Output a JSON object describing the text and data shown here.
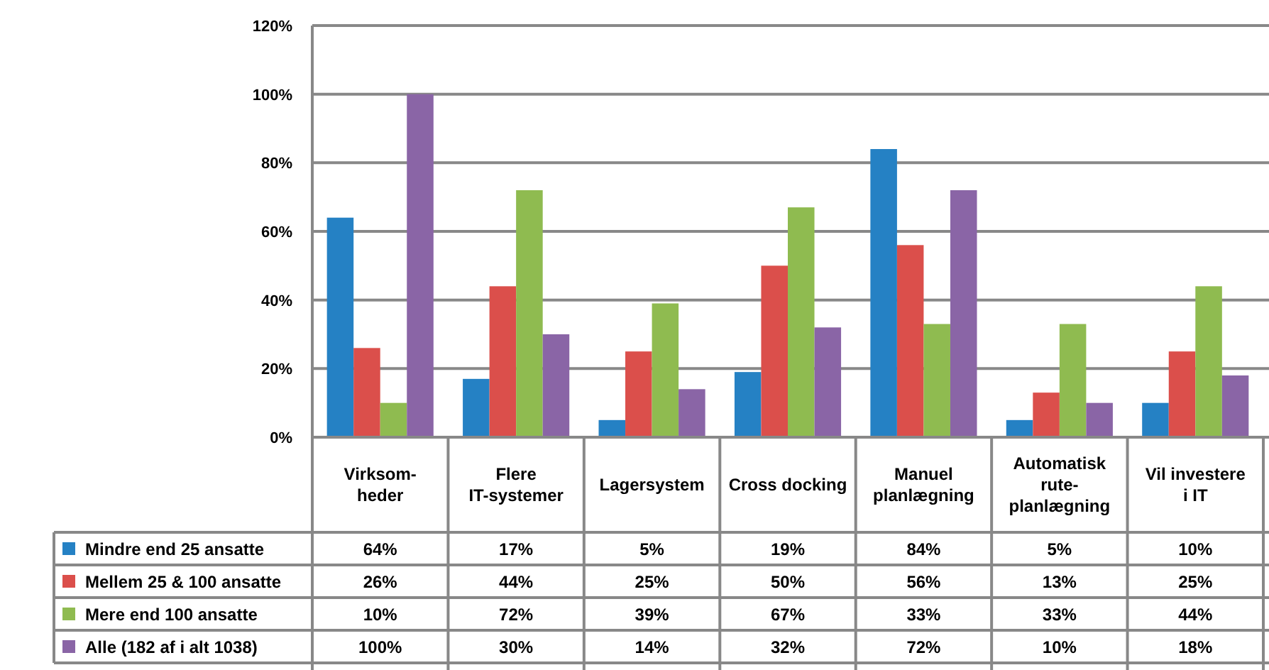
{
  "chart_data": {
    "type": "bar",
    "categories": [
      "Virksom-\nheder",
      "Flere\nIT-systemer",
      "Lagersystem",
      "Cross docking",
      "Manuel\nplanlægning",
      "Automatisk\nrute-\nplanlægning",
      "Vil investere\ni IT"
    ],
    "series": [
      {
        "name": "Mindre end 25 ansatte",
        "color": "#2581c4",
        "values": [
          64,
          17,
          5,
          19,
          84,
          5,
          10
        ],
        "value_labels": [
          "64%",
          "17%",
          "5%",
          "19%",
          "84%",
          "5%",
          "10%"
        ]
      },
      {
        "name": "Mellem 25 & 100 ansatte",
        "color": "#db4f4b",
        "values": [
          26,
          44,
          25,
          50,
          56,
          13,
          25
        ],
        "value_labels": [
          "26%",
          "44%",
          "25%",
          "50%",
          "56%",
          "13%",
          "25%"
        ]
      },
      {
        "name": "Mere end 100 ansatte",
        "color": "#8fbb50",
        "values": [
          10,
          72,
          39,
          67,
          33,
          33,
          44
        ],
        "value_labels": [
          "10%",
          "72%",
          "39%",
          "67%",
          "33%",
          "33%",
          "44%"
        ]
      },
      {
        "name": "Alle (182 af i alt 1038)",
        "color": "#8a65a6",
        "values": [
          100,
          30,
          14,
          32,
          72,
          10,
          18
        ],
        "value_labels": [
          "100%",
          "30%",
          "14%",
          "32%",
          "72%",
          "10%",
          "18%"
        ]
      }
    ],
    "ylim": [
      0,
      120
    ],
    "yticks": [
      {
        "value": 0,
        "label": "0%"
      },
      {
        "value": 20,
        "label": "20%"
      },
      {
        "value": 40,
        "label": "40%"
      },
      {
        "value": 60,
        "label": "60%"
      },
      {
        "value": 80,
        "label": "80%"
      },
      {
        "value": 100,
        "label": "100%"
      },
      {
        "value": 120,
        "label": "120%"
      }
    ],
    "grid": "y",
    "legend": "bottom"
  }
}
